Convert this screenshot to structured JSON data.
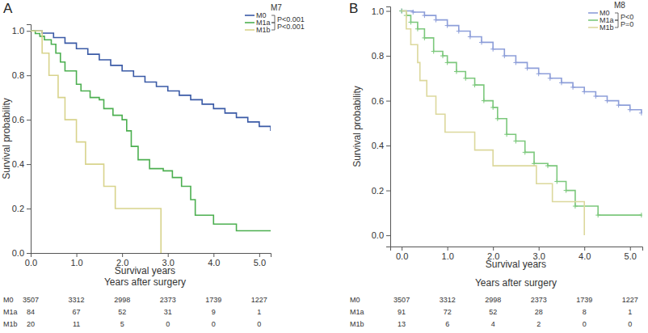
{
  "chart_data": [
    {
      "type": "line",
      "title": "A",
      "ylabel": "Survival probability",
      "xlabel": "Survival years",
      "legend_title": "M7",
      "legend": "upper right",
      "line_style": "step",
      "grid": false,
      "annotations": [
        "P<0.001",
        "P<0.001"
      ],
      "xlim": [
        0,
        5.25
      ],
      "ylim": [
        0,
        1.03
      ],
      "xticks": [
        {
          "value": 0,
          "label": "0.0"
        },
        {
          "value": 1,
          "label": "1.0"
        },
        {
          "value": 2,
          "label": "2.0"
        },
        {
          "value": 3,
          "label": "3.0"
        },
        {
          "value": 4,
          "label": "4.0"
        },
        {
          "value": 5,
          "label": "5.0"
        }
      ],
      "yticks": [
        {
          "value": 0,
          "label": "0.0"
        },
        {
          "value": 0.2,
          "label": "0.2"
        },
        {
          "value": 0.4,
          "label": "0.4"
        },
        {
          "value": 0.6,
          "label": "0.6"
        },
        {
          "value": 0.8,
          "label": "0.8"
        },
        {
          "value": 1,
          "label": "1.0"
        }
      ],
      "series": [
        {
          "name": "M0",
          "color": "#3a5aa6",
          "x": [
            0,
            0.25,
            0.5,
            0.75,
            1,
            1.25,
            1.5,
            1.75,
            2,
            2.25,
            2.5,
            2.75,
            3,
            3.25,
            3.5,
            3.75,
            4,
            4.25,
            4.5,
            4.75,
            5,
            5.25
          ],
          "values": [
            1.0,
            0.99,
            0.97,
            0.945,
            0.92,
            0.895,
            0.87,
            0.845,
            0.82,
            0.795,
            0.77,
            0.75,
            0.73,
            0.71,
            0.69,
            0.67,
            0.65,
            0.63,
            0.61,
            0.59,
            0.57,
            0.55
          ]
        },
        {
          "name": "M1a",
          "color": "#4caf50",
          "x": [
            0,
            0.1,
            0.2,
            0.3,
            0.45,
            0.55,
            0.65,
            0.75,
            1.0,
            1.1,
            1.3,
            1.5,
            1.6,
            1.8,
            2.0,
            2.1,
            2.2,
            2.35,
            2.6,
            2.9,
            3.1,
            3.3,
            3.5,
            3.6,
            4.0,
            4.5,
            5.25
          ],
          "values": [
            1.0,
            0.988,
            0.976,
            0.96,
            0.94,
            0.9,
            0.86,
            0.82,
            0.76,
            0.73,
            0.7,
            0.69,
            0.65,
            0.62,
            0.6,
            0.55,
            0.48,
            0.42,
            0.38,
            0.37,
            0.34,
            0.3,
            0.24,
            0.17,
            0.13,
            0.1,
            0.1
          ]
        },
        {
          "name": "M1b",
          "color": "#d8d38c",
          "x": [
            0,
            0.25,
            0.4,
            0.6,
            0.75,
            1.0,
            1.2,
            1.6,
            1.85,
            2.85
          ],
          "values": [
            1.0,
            0.9,
            0.8,
            0.7,
            0.6,
            0.5,
            0.4,
            0.3,
            0.2,
            0.0
          ]
        }
      ],
      "risk_table": {
        "title": "Years after surgery",
        "rows": [
          {
            "name": "M0",
            "values": [
              3507,
              3312,
              2998,
              2373,
              1739,
              1227
            ]
          },
          {
            "name": "M1a",
            "values": [
              84,
              67,
              52,
              31,
              9,
              1
            ]
          },
          {
            "name": "M1b",
            "values": [
              20,
              11,
              5,
              0,
              0,
              0
            ]
          }
        ]
      }
    },
    {
      "type": "line",
      "title": "B",
      "ylabel": "Survival probability",
      "xlabel": "Survival years",
      "legend_title": "M8",
      "legend": "upper right",
      "line_style": "step",
      "grid": false,
      "annotations": [
        "P<0",
        "P=0"
      ],
      "xlim": [
        -0.25,
        5.27
      ],
      "ylim": [
        -0.05,
        1.02
      ],
      "xticks": [
        {
          "value": 0,
          "label": "0.0"
        },
        {
          "value": 1,
          "label": "1.0"
        },
        {
          "value": 2,
          "label": "2.0"
        },
        {
          "value": 3,
          "label": "3.0"
        },
        {
          "value": 4,
          "label": "4.0"
        },
        {
          "value": 5,
          "label": "5.0"
        }
      ],
      "yticks": [
        {
          "value": 0,
          "label": "0.0"
        },
        {
          "value": 0.2,
          "label": "0.2"
        },
        {
          "value": 0.4,
          "label": "0.4"
        },
        {
          "value": 0.6,
          "label": "0.6"
        },
        {
          "value": 0.8,
          "label": "0.8"
        },
        {
          "value": 1,
          "label": "1.0"
        }
      ],
      "series": [
        {
          "name": "M0",
          "color": "#8d9ed9",
          "marker": "plus",
          "x": [
            0,
            0.25,
            0.5,
            0.75,
            1,
            1.25,
            1.5,
            1.75,
            2,
            2.25,
            2.5,
            2.75,
            3,
            3.25,
            3.5,
            3.75,
            4,
            4.25,
            4.5,
            4.75,
            5,
            5.25
          ],
          "values": [
            1.0,
            0.995,
            0.98,
            0.96,
            0.935,
            0.91,
            0.885,
            0.86,
            0.83,
            0.8,
            0.77,
            0.745,
            0.72,
            0.7,
            0.68,
            0.66,
            0.64,
            0.62,
            0.6,
            0.58,
            0.56,
            0.545
          ]
        },
        {
          "name": "M1a",
          "color": "#7cc87c",
          "marker": "plus",
          "x": [
            0,
            0.1,
            0.2,
            0.35,
            0.5,
            0.7,
            0.9,
            1.0,
            1.2,
            1.4,
            1.6,
            1.8,
            2.0,
            2.1,
            2.3,
            2.5,
            2.7,
            2.9,
            3.2,
            3.4,
            3.6,
            3.8,
            4.3,
            5.25
          ],
          "values": [
            1.0,
            0.98,
            0.95,
            0.92,
            0.88,
            0.82,
            0.8,
            0.77,
            0.73,
            0.7,
            0.67,
            0.6,
            0.57,
            0.52,
            0.45,
            0.42,
            0.37,
            0.32,
            0.31,
            0.24,
            0.2,
            0.13,
            0.09,
            0.09
          ]
        },
        {
          "name": "M1b",
          "color": "#dcd89c",
          "x": [
            0,
            0.1,
            0.2,
            0.35,
            0.4,
            0.55,
            0.75,
            0.95,
            1.6,
            2.0,
            2.95,
            3.3,
            4.0
          ],
          "values": [
            1.0,
            0.92,
            0.85,
            0.77,
            0.69,
            0.62,
            0.54,
            0.46,
            0.38,
            0.31,
            0.23,
            0.15,
            0.0
          ]
        }
      ],
      "risk_table": {
        "title": "Years after surgery",
        "rows": [
          {
            "name": "M0",
            "values": [
              3507,
              3312,
              2998,
              2373,
              1739,
              1227
            ]
          },
          {
            "name": "M1a",
            "values": [
              91,
              72,
              52,
              28,
              8,
              1
            ]
          },
          {
            "name": "M1b",
            "values": [
              13,
              6,
              4,
              2,
              0,
              0
            ]
          }
        ]
      }
    }
  ]
}
